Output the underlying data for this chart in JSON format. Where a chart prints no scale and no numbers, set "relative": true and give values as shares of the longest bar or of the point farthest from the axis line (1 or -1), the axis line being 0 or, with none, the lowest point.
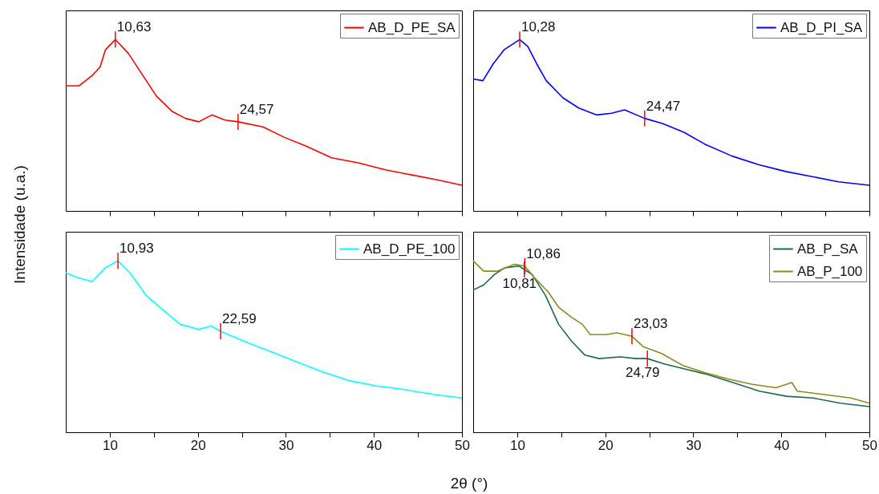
{
  "chart_data": [
    {
      "type": "line",
      "relative": true,
      "ylabel": "Intensidade (u.a.)",
      "xlim": [
        5,
        50
      ],
      "xticks": [
        10,
        {
          "value": 15,
          "label": null
        },
        20,
        {
          "value": 25,
          "label": null
        },
        30,
        {
          "value": 35,
          "label": null
        },
        40,
        {
          "value": 45,
          "label": null
        },
        50
      ],
      "tick_labels": false,
      "legend": "top right",
      "series": [
        {
          "name": "AB_D_PE_SA",
          "color": "#ff0000",
          "x": [
            5,
            6.5,
            8,
            8.9,
            9.5,
            10.63,
            12.1,
            13.5,
            15.3,
            17.1,
            18.6,
            20.1,
            21.6,
            23.1,
            24.57,
            27.4,
            29.8,
            32.2,
            35.2,
            38.3,
            41.3,
            44.3,
            47.3,
            50
          ],
          "values": [
            0.73,
            0.73,
            0.79,
            0.84,
            0.94,
            1.0,
            0.92,
            0.81,
            0.67,
            0.58,
            0.54,
            0.52,
            0.56,
            0.53,
            0.52,
            0.49,
            0.43,
            0.38,
            0.31,
            0.28,
            0.24,
            0.21,
            0.18,
            0.15
          ]
        }
      ],
      "annotations": [
        {
          "text": "10,63",
          "x": 10.63,
          "y": 1.0
        },
        {
          "text": "24,57",
          "x": 24.57,
          "y": 0.52
        }
      ]
    },
    {
      "type": "line",
      "relative": true,
      "xlim": [
        5,
        50
      ],
      "xticks": [
        10,
        {
          "value": 15,
          "label": null
        },
        20,
        {
          "value": 25,
          "label": null
        },
        30,
        {
          "value": 35,
          "label": null
        },
        40,
        {
          "value": 45,
          "label": null
        },
        50
      ],
      "tick_labels": false,
      "legend": "top right",
      "series": [
        {
          "name": "AB_D_PI_SA",
          "color": "#0000ff",
          "x": [
            5,
            6.1,
            7.3,
            8.5,
            10.28,
            11.2,
            12.2,
            13.3,
            15.2,
            17,
            19,
            20.7,
            22.2,
            24.47,
            26.5,
            28.9,
            31.3,
            34.4,
            37.4,
            40.5,
            43.5,
            46.5,
            50
          ],
          "values": [
            0.77,
            0.76,
            0.86,
            0.94,
            1.0,
            0.96,
            0.86,
            0.76,
            0.66,
            0.6,
            0.56,
            0.57,
            0.59,
            0.54,
            0.51,
            0.46,
            0.39,
            0.32,
            0.27,
            0.23,
            0.2,
            0.17,
            0.15
          ]
        }
      ],
      "annotations": [
        {
          "text": "10,28",
          "x": 10.28,
          "y": 1.0
        },
        {
          "text": "24,47",
          "x": 24.47,
          "y": 0.54
        }
      ]
    },
    {
      "type": "line",
      "relative": true,
      "xlabel": "2θ (°)",
      "xlim": [
        5,
        50
      ],
      "xticks": [
        10,
        {
          "value": 15,
          "label": null
        },
        20,
        {
          "value": 25,
          "label": null
        },
        30,
        {
          "value": 35,
          "label": null
        },
        40,
        {
          "value": 45,
          "label": null
        },
        50
      ],
      "tick_labels": "x",
      "legend": "top right",
      "series": [
        {
          "name": "AB_D_PE_100",
          "color": "#00ffff",
          "x": [
            5,
            6.5,
            8,
            9.5,
            10.93,
            12.3,
            14.1,
            15.9,
            18,
            20.1,
            21.5,
            22.59,
            25.3,
            28.3,
            31.3,
            34.3,
            37.3,
            40.3,
            43.3,
            46.9,
            50
          ],
          "values": [
            0.93,
            0.9,
            0.88,
            0.96,
            1.0,
            0.93,
            0.8,
            0.72,
            0.63,
            0.6,
            0.62,
            0.59,
            0.53,
            0.47,
            0.41,
            0.35,
            0.3,
            0.27,
            0.25,
            0.22,
            0.2
          ]
        }
      ],
      "annotations": [
        {
          "text": "10,93",
          "x": 10.93,
          "y": 1.0
        },
        {
          "text": "22,59",
          "x": 22.59,
          "y": 0.59
        }
      ]
    },
    {
      "type": "line",
      "relative": true,
      "xlim": [
        5,
        50
      ],
      "xticks": [
        10,
        {
          "value": 15,
          "label": null
        },
        20,
        {
          "value": 25,
          "label": null
        },
        30,
        {
          "value": 35,
          "label": null
        },
        40,
        {
          "value": 45,
          "label": null
        },
        50
      ],
      "tick_labels": "x",
      "legend": "top right",
      "series": [
        {
          "name": "AB_P_SA",
          "color": "#1a6b4c",
          "x": [
            5,
            6.2,
            7.4,
            8.6,
            10.2,
            10.81,
            11.7,
            13.2,
            14.7,
            16.2,
            17.7,
            19.3,
            21.7,
            23.5,
            24.79,
            26.6,
            29,
            31.4,
            34.5,
            37.5,
            40.6,
            43.6,
            46.7,
            50
          ],
          "values": [
            0.83,
            0.86,
            0.92,
            0.96,
            0.97,
            0.95,
            0.92,
            0.8,
            0.63,
            0.53,
            0.45,
            0.43,
            0.44,
            0.43,
            0.43,
            0.4,
            0.37,
            0.34,
            0.29,
            0.24,
            0.21,
            0.2,
            0.17,
            0.15
          ]
        },
        {
          "name": "AB_P_100",
          "color": "#8b8b1a",
          "x": [
            5,
            6.2,
            7.7,
            9.7,
            10.86,
            12,
            13.5,
            14.7,
            16.2,
            17.4,
            18.3,
            20.1,
            21.3,
            23.03,
            24.3,
            26.4,
            28.8,
            31.2,
            34,
            36.7,
            39.4,
            41.2,
            41.8,
            44.9,
            47.9,
            50
          ],
          "values": [
            1.0,
            0.94,
            0.94,
            0.98,
            0.97,
            0.9,
            0.82,
            0.73,
            0.67,
            0.63,
            0.57,
            0.57,
            0.58,
            0.56,
            0.5,
            0.46,
            0.39,
            0.35,
            0.31,
            0.28,
            0.26,
            0.29,
            0.24,
            0.22,
            0.2,
            0.17
          ]
        }
      ],
      "annotations": [
        {
          "text": "10,86",
          "x": 10.86,
          "y": 0.97
        },
        {
          "text": "10,81",
          "x": 10.81,
          "y": 0.95
        },
        {
          "text": "23,03",
          "x": 23.03,
          "y": 0.56
        },
        {
          "text": "24,79",
          "x": 24.79,
          "y": 0.43
        }
      ]
    }
  ]
}
